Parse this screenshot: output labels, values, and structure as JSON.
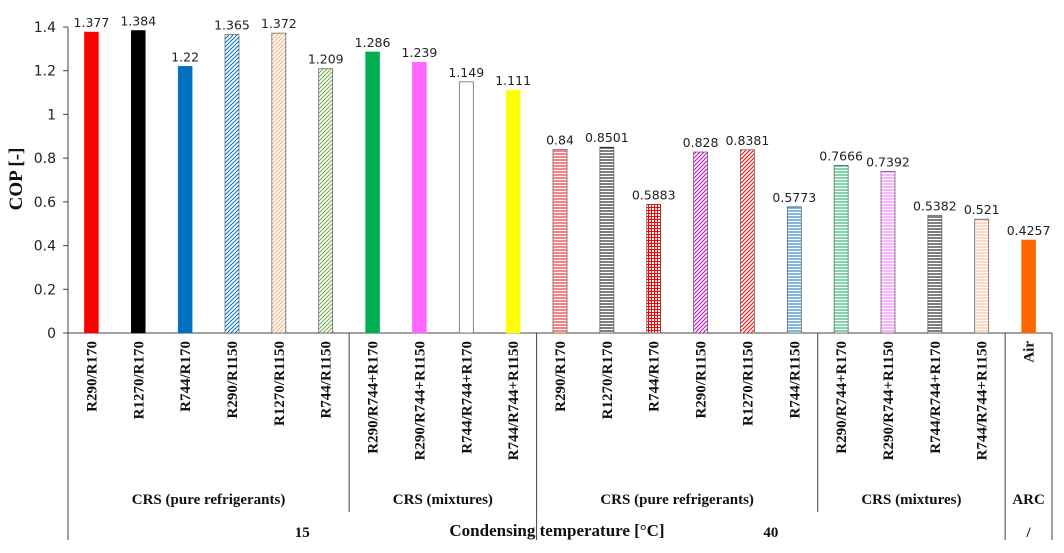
{
  "chart_data": {
    "type": "bar",
    "ylabel": "COP [-]",
    "xlabel": "Condensing temperature [°C]",
    "ylim": [
      0,
      1.4
    ],
    "yticks": [
      0,
      0.2,
      0.4,
      0.6,
      0.8,
      1,
      1.2,
      1.4
    ],
    "ytick_labels": [
      "0",
      "0.2",
      "0.4",
      "0.6",
      "0.8",
      "1",
      "1.2",
      "1.4"
    ],
    "grid": false,
    "bars": [
      {
        "category": "R290/R170",
        "value": 1.377,
        "label": "1.377",
        "color": "#ff0000",
        "pattern": "solid"
      },
      {
        "category": "R1270/R170",
        "value": 1.384,
        "label": "1.384",
        "color": "#000000",
        "pattern": "solid"
      },
      {
        "category": "R744/R170",
        "value": 1.22,
        "label": "1.22",
        "color": "#0070c0",
        "pattern": "solid"
      },
      {
        "category": "R290/R1150",
        "value": 1.365,
        "label": "1.365",
        "color": "#0070c0",
        "pattern": "diag"
      },
      {
        "category": "R1270/R1150",
        "value": 1.372,
        "label": "1.372",
        "color": "#f4b183",
        "pattern": "diag"
      },
      {
        "category": "R744/R1150",
        "value": 1.209,
        "label": "1.209",
        "color": "#70ad47",
        "pattern": "diag"
      },
      {
        "category": "R290/R744+R170",
        "value": 1.286,
        "label": "1.286",
        "color": "#00b050",
        "pattern": "solid"
      },
      {
        "category": "R290/R744+R1150",
        "value": 1.239,
        "label": "1.239",
        "color": "#ff66ff",
        "pattern": "solid"
      },
      {
        "category": "R744/R744+R170",
        "value": 1.149,
        "label": "1.149",
        "color": "#ffffff",
        "pattern": "solid"
      },
      {
        "category": "R744/R744+R1150",
        "value": 1.111,
        "label": "1.111",
        "color": "#ffff00",
        "pattern": "solid"
      },
      {
        "category": "R290/R170",
        "value": 0.84,
        "label": "0.84",
        "color": "#ff0000",
        "pattern": "horiz"
      },
      {
        "category": "R1270/R170",
        "value": 0.8501,
        "label": "0.8501",
        "color": "#000000",
        "pattern": "horiz"
      },
      {
        "category": "R744/R170",
        "value": 0.5883,
        "label": "0.5883",
        "color": "#ff0000",
        "pattern": "grid"
      },
      {
        "category": "R290/R1150",
        "value": 0.828,
        "label": "0.828",
        "color": "#cc00cc",
        "pattern": "diag"
      },
      {
        "category": "R1270/R1150",
        "value": 0.8381,
        "label": "0.8381",
        "color": "#ff0000",
        "pattern": "diag"
      },
      {
        "category": "R744/R1150",
        "value": 0.5773,
        "label": "0.5773",
        "color": "#0070c0",
        "pattern": "horiz"
      },
      {
        "category": "R290/R744+R170",
        "value": 0.7666,
        "label": "0.7666",
        "color": "#00b050",
        "pattern": "horiz"
      },
      {
        "category": "R290/R744+R1150",
        "value": 0.7392,
        "label": "0.7392",
        "color": "#ff66ff",
        "pattern": "horiz"
      },
      {
        "category": "R744/R744+R170",
        "value": 0.5382,
        "label": "0.5382",
        "color": "#000000",
        "pattern": "horiz"
      },
      {
        "category": "R744/R744+R1150",
        "value": 0.521,
        "label": "0.521",
        "color": "#f4b183",
        "pattern": "horiz"
      },
      {
        "category": "Air",
        "value": 0.4257,
        "label": "0.4257",
        "color": "#ff6600",
        "pattern": "solid"
      }
    ],
    "groups": [
      {
        "label": "CRS (pure refrigerants)",
        "start": 0,
        "end": 5
      },
      {
        "label": "CRS (mixtures)",
        "start": 6,
        "end": 9
      },
      {
        "label": "CRS (pure refrigerants)",
        "start": 10,
        "end": 15
      },
      {
        "label": "CRS (mixtures)",
        "start": 16,
        "end": 19
      },
      {
        "label": "ARC",
        "start": 20,
        "end": 20
      }
    ],
    "temperatures": [
      {
        "label": "15",
        "start": 0,
        "end": 9
      },
      {
        "label": "40",
        "start": 10,
        "end": 19
      },
      {
        "label": "/",
        "start": 20,
        "end": 20
      }
    ]
  }
}
